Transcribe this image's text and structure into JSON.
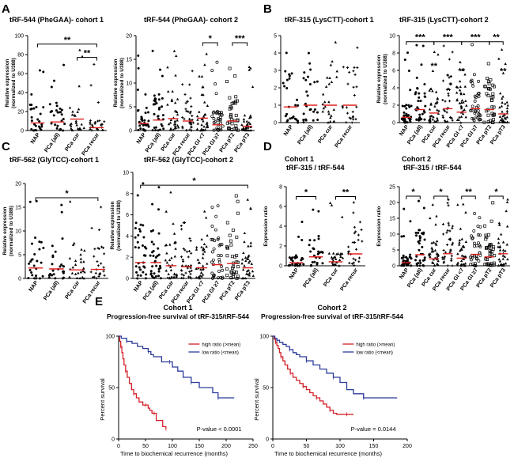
{
  "panel_letters": {
    "a": "A",
    "b": "B",
    "c": "C",
    "d": "D",
    "e": "E"
  },
  "sig": {
    "s1": "*",
    "s2": "**",
    "s3": "***"
  },
  "chart_data": [
    {
      "id": "A1",
      "type": "scatter",
      "title": "tRF-544 (PheGAA)- cohort 1",
      "ylabel1": "Relative expression",
      "ylabel2": "(normalized to U388)",
      "ylim": [
        0,
        100
      ],
      "yticks": [
        "0",
        "20",
        "40",
        "60",
        "80",
        "100"
      ],
      "categories": [
        "NAP",
        "PCa (all)",
        "PCa cur",
        "PCa recur"
      ],
      "medians": [
        8,
        9,
        12,
        3
      ],
      "brackets": [
        {
          "from": 0,
          "to": 3,
          "label": "**",
          "y": 91
        },
        {
          "from": 2,
          "to": 3,
          "label": "**",
          "y": 77
        }
      ]
    },
    {
      "id": "A2",
      "type": "scatter",
      "title": "tRF-544 (PheGAA)- cohort 2",
      "ylabel1": "Relative expression",
      "ylabel2": "(normalized to U388)",
      "ylim": [
        0,
        20
      ],
      "yticks": [
        "0",
        "5",
        "10",
        "15",
        "20"
      ],
      "categories": [
        "NAP",
        "PCa (all)",
        "PCa cur",
        "PCa recur",
        "PCa GI <7",
        "PCa GI ≥7",
        "PCa pT2",
        "PCa pT3"
      ],
      "medians": [
        1.5,
        2.2,
        2.5,
        2,
        2.6,
        1.2,
        2,
        0.9
      ],
      "brackets": [
        {
          "from": 4,
          "to": 5,
          "label": "*",
          "y": 18.5
        },
        {
          "from": 6,
          "to": 7,
          "label": "***",
          "y": 18.5
        }
      ]
    },
    {
      "id": "B1",
      "type": "scatter",
      "title": "tRF-315 (LysCTT)-cohort 1",
      "ylabel1": "",
      "ylabel2": "",
      "ylim": [
        0,
        5
      ],
      "yticks": [
        "0",
        "1",
        "2",
        "3",
        "4",
        "5"
      ],
      "categories": [
        "NAP",
        "PCa (all)",
        "PCa cur",
        "PCa recur"
      ],
      "medians": [
        0.9,
        1,
        1,
        1
      ],
      "brackets": []
    },
    {
      "id": "B2",
      "type": "scatter",
      "title": "tRF-315 (LysCTT)-cohort 2",
      "ylabel1": "Relative expression",
      "ylabel2": "(normalized to U388)",
      "ylim": [
        0,
        10
      ],
      "yticks": [
        "0",
        "2",
        "4",
        "6",
        "8",
        "10"
      ],
      "categories": [
        "NAP",
        "PCa (all)",
        "PCa cur",
        "PCa recur",
        "PCa GI <7",
        "PCa GI ≥7",
        "PCa pT2",
        "PCa pT3"
      ],
      "medians": [
        0.6,
        1.5,
        1.1,
        1.6,
        1.2,
        1.6,
        1.5,
        1
      ],
      "brackets": [
        {
          "from": 0,
          "to": 2,
          "label": "***",
          "y": 9.3
        },
        {
          "from": 2,
          "to": 4,
          "label": "***",
          "y": 9.3
        },
        {
          "from": 4,
          "to": 6,
          "label": "***",
          "y": 9.3
        },
        {
          "from": 6,
          "to": 7,
          "label": "**",
          "y": 9.3
        }
      ],
      "stars": [
        {
          "at": 2,
          "label": "**",
          "y": 6.2
        },
        {
          "at": 4,
          "label": "**",
          "y": 5.6
        },
        {
          "at": 7,
          "label": "**",
          "y": 5.6
        }
      ]
    },
    {
      "id": "C1",
      "type": "scatter",
      "title": "tRF-562 (GlyTCC)-cohort 1",
      "ylabel1": "Relative expression",
      "ylabel2": "(normalized to U388)",
      "ylim": [
        0,
        20
      ],
      "yticks": [
        "0",
        "5",
        "10",
        "15",
        "20"
      ],
      "categories": [
        "NAP",
        "PCa (all)",
        "PCa cur",
        "PCa recur"
      ],
      "medians": [
        2.2,
        2,
        1.8,
        1.9
      ],
      "brackets": [
        {
          "from": 0,
          "to": 3,
          "label": "*",
          "y": 17
        }
      ]
    },
    {
      "id": "C2",
      "type": "scatter",
      "title": "tRF-562 (GlyTCC)-cohort 2",
      "ylabel1": "Relative expression",
      "ylabel2": "(normalized to U388)",
      "ylim": [
        0,
        10
      ],
      "yticks": [
        "0",
        "2",
        "4",
        "6",
        "8",
        "10"
      ],
      "categories": [
        "NAP",
        "PCa (all)",
        "PCa cur",
        "PCa recur",
        "PCa GI <7",
        "PCa GI ≥7",
        "PCa pT2",
        "PCa pT3"
      ],
      "medians": [
        1.5,
        1.5,
        1.2,
        1.1,
        1,
        1.3,
        1.4,
        1
      ],
      "brackets": [
        {
          "from": 0,
          "to": 7,
          "label": "*",
          "y": 8.8
        }
      ]
    },
    {
      "id": "D1",
      "type": "scatter",
      "title": "Cohort 1",
      "title2": "tRF-315 / tRF-544",
      "ylabel1": "Expression ratio",
      "ylabel2": "",
      "ylim": [
        0,
        8
      ],
      "yticks": [
        "0",
        "2",
        "4",
        "6",
        "8"
      ],
      "categories": [
        "NAP",
        "PCa (all)",
        "PCa cur",
        "PCa recur"
      ],
      "medians": [
        0.3,
        0.9,
        0.4,
        1.2
      ],
      "brackets": [
        {
          "from": 0,
          "to": 1,
          "label": "*",
          "y": 7
        },
        {
          "from": 2,
          "to": 3,
          "label": "**",
          "y": 7
        }
      ]
    },
    {
      "id": "D2",
      "type": "scatter",
      "title": "Cohort 2",
      "title2": "tRF-315 / tRF-544",
      "ylabel1": "Expression ratio",
      "ylabel2": "",
      "ylim": [
        0,
        25
      ],
      "yticks": [
        "0",
        "5",
        "10",
        "15",
        "20",
        "25"
      ],
      "categories": [
        "NAP",
        "PCa (all)",
        "PCa cur",
        "PCa recur",
        "PCa GI <7",
        "PCa GI ≥7",
        "PCa pT2",
        "PCa pT3"
      ],
      "medians": [
        1,
        3.5,
        2.2,
        3.8,
        2.4,
        3.6,
        2.8,
        3.8
      ],
      "brackets": [
        {
          "from": 0,
          "to": 1,
          "label": "*",
          "y": 22
        },
        {
          "from": 2,
          "to": 3,
          "label": "*",
          "y": 22
        },
        {
          "from": 4,
          "to": 5,
          "label": "**",
          "y": 22
        },
        {
          "from": 6,
          "to": 7,
          "label": "*",
          "y": 22
        }
      ]
    },
    {
      "id": "E1",
      "type": "line",
      "title": "Cohort 1",
      "subtitle": "Progression-free survival of tRF-315/tRF-544",
      "xlabel": "Time to biochemical recurrence (months)",
      "ylabel": "Percent survival",
      "xlim": [
        0,
        250
      ],
      "ylim": [
        0,
        100
      ],
      "xticks": [
        "0",
        "50",
        "100",
        "150",
        "200",
        "250"
      ],
      "yticks": [
        "0",
        "50",
        "100"
      ],
      "pvalue": "P-value < 0.0001",
      "series": [
        {
          "name": "high ratio (>mean)",
          "color": "#d4202a",
          "x": [
            0,
            2,
            4,
            6,
            8,
            10,
            13,
            16,
            20,
            24,
            28,
            33,
            38,
            45,
            50,
            55,
            58,
            62,
            66,
            70,
            75,
            82,
            88
          ],
          "y": [
            100,
            95,
            90,
            84,
            78,
            72,
            66,
            60,
            54,
            48,
            44,
            40,
            36,
            33,
            33,
            30,
            28,
            25,
            25,
            18,
            18,
            12,
            10
          ]
        },
        {
          "name": "low ratio (<mean)",
          "color": "#2b3b9c",
          "x": [
            0,
            5,
            15,
            25,
            35,
            45,
            55,
            60,
            65,
            80,
            95,
            100,
            110,
            120,
            135,
            150,
            165,
            175,
            185,
            200,
            215
          ],
          "y": [
            100,
            98,
            95,
            93,
            90,
            88,
            85,
            82,
            80,
            75,
            75,
            70,
            66,
            60,
            55,
            50,
            50,
            45,
            40,
            40,
            40
          ]
        }
      ]
    },
    {
      "id": "E2",
      "type": "line",
      "title": "Cohort 2",
      "subtitle": "Progression-free survival of tRF-315/tRF-544",
      "xlabel": "Time to biochemical recurrence (months)",
      "ylabel": "Percent survival",
      "xlim": [
        0,
        200
      ],
      "ylim": [
        0,
        100
      ],
      "xticks": [
        "0",
        "50",
        "100",
        "150",
        "200"
      ],
      "yticks": [
        "0",
        "50",
        "100"
      ],
      "pvalue": "P-value = 0.0144",
      "series": [
        {
          "name": "high ratio (>mean)",
          "color": "#d4202a",
          "x": [
            0,
            2,
            4,
            6,
            8,
            10,
            12,
            15,
            18,
            22,
            26,
            30,
            35,
            40,
            45,
            50,
            55,
            60,
            65,
            70,
            75,
            80,
            85,
            90,
            95,
            100,
            110,
            120
          ],
          "y": [
            100,
            97,
            94,
            91,
            88,
            84,
            80,
            76,
            72,
            68,
            64,
            60,
            57,
            54,
            51,
            48,
            45,
            42,
            40,
            37,
            34,
            31,
            28,
            25,
            24,
            24,
            24,
            24
          ]
        },
        {
          "name": "low ratio (<mean)",
          "color": "#2b3b9c",
          "x": [
            0,
            3,
            6,
            10,
            15,
            20,
            25,
            30,
            35,
            40,
            50,
            60,
            70,
            80,
            90,
            100,
            110,
            120,
            135,
            150,
            165,
            185
          ],
          "y": [
            100,
            98,
            96,
            94,
            92,
            90,
            87,
            84,
            82,
            80,
            76,
            72,
            68,
            64,
            60,
            55,
            48,
            44,
            40,
            40,
            40,
            40
          ]
        }
      ]
    }
  ]
}
